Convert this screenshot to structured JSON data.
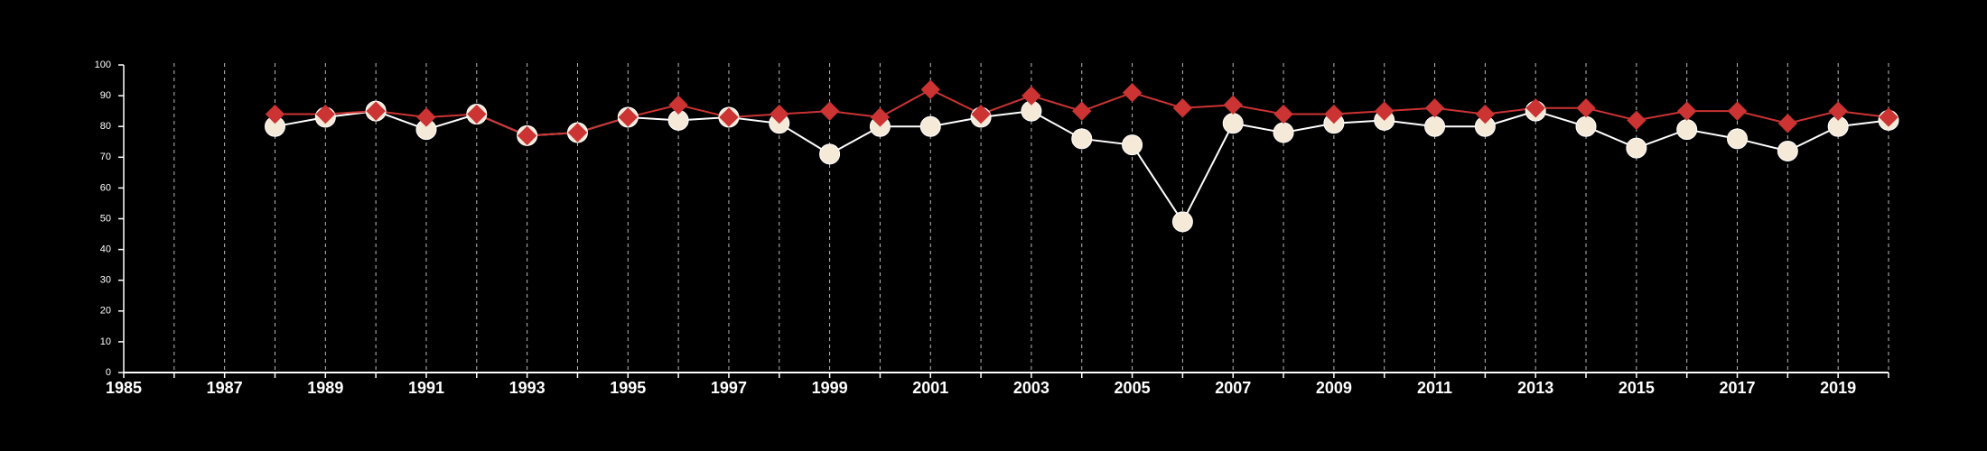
{
  "chart_data": {
    "type": "line",
    "title": "",
    "xlabel": "",
    "ylabel": "",
    "xlim": [
      1985,
      2020
    ],
    "ylim": [
      0,
      100
    ],
    "y_ticks": [
      0,
      10,
      20,
      30,
      40,
      50,
      60,
      70,
      80,
      90,
      100
    ],
    "x_tick_labels": [
      1985,
      1987,
      1989,
      1991,
      1993,
      1995,
      1997,
      1999,
      2001,
      2003,
      2005,
      2007,
      2009,
      2011,
      2013,
      2015,
      2017,
      2019
    ],
    "vertical_gridlines_every_year": true,
    "x": [
      1988,
      1989,
      1990,
      1991,
      1992,
      1993,
      1994,
      1995,
      1996,
      1997,
      1998,
      1999,
      2000,
      2001,
      2002,
      2003,
      2004,
      2005,
      2006,
      2007,
      2008,
      2009,
      2010,
      2011,
      2012,
      2013,
      2014,
      2015,
      2016,
      2017,
      2018,
      2019,
      2020
    ],
    "series": [
      {
        "marker": "circle",
        "color": "#f5e9d8",
        "line_color": "#ffffff",
        "values": [
          80,
          83,
          85,
          79,
          84,
          77,
          78,
          83,
          82,
          83,
          81,
          71,
          80,
          80,
          83,
          85,
          76,
          74,
          49,
          81,
          78,
          81,
          82,
          80,
          80,
          85,
          80,
          73,
          79,
          76,
          72,
          80,
          82
        ]
      },
      {
        "marker": "diamond",
        "color": "#cc3333",
        "line_color": "#cc3333",
        "values": [
          84,
          84,
          85,
          83,
          84,
          77,
          78,
          83,
          87,
          83,
          84,
          85,
          83,
          92,
          84,
          90,
          85,
          91,
          86,
          87,
          84,
          84,
          85,
          86,
          84,
          86,
          86,
          82,
          85,
          85,
          81,
          85,
          83
        ]
      }
    ]
  }
}
